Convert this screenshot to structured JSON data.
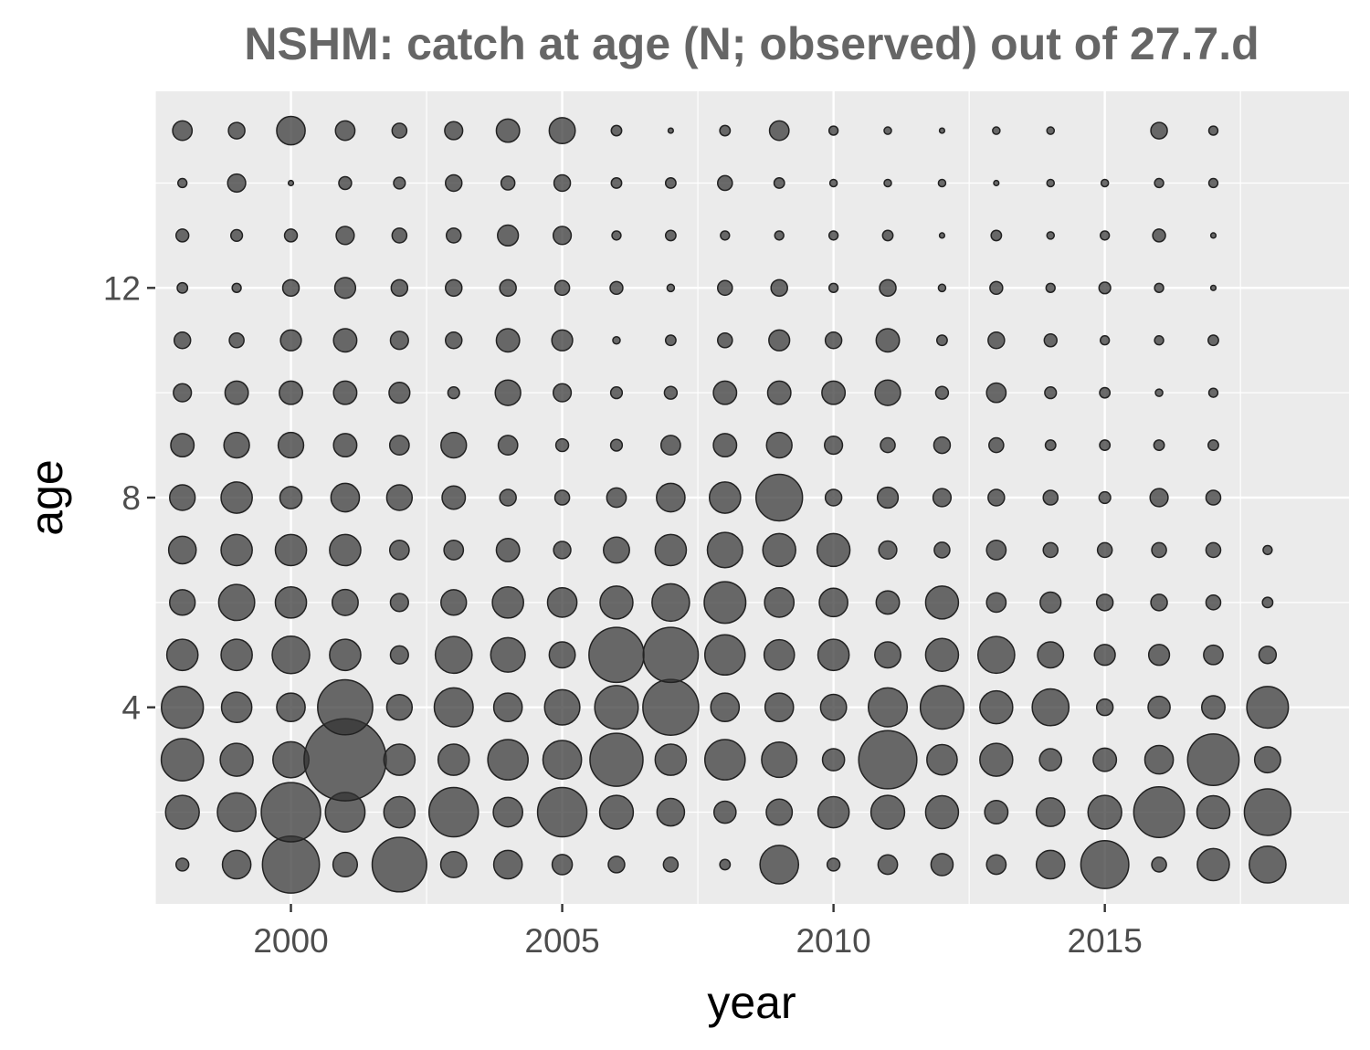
{
  "chart_data": {
    "type": "scatter",
    "title": "NSHM: catch at age (N; observed) out of 27.7.d",
    "xlabel": "year",
    "ylabel": "age",
    "xlim": [
      1997.5,
      2019.5
    ],
    "ylim": [
      0.25,
      15.75
    ],
    "x_ticks": [
      2000,
      2005,
      2010,
      2015
    ],
    "y_ticks": [
      4,
      8,
      12
    ],
    "grid": true,
    "legend": "none",
    "years": [
      1998,
      1999,
      2000,
      2001,
      2002,
      2003,
      2004,
      2005,
      2006,
      2007,
      2008,
      2009,
      2010,
      2011,
      2012,
      2013,
      2014,
      2015,
      2016,
      2017,
      2018
    ],
    "ages": [
      1,
      2,
      3,
      4,
      5,
      6,
      7,
      8,
      9,
      10,
      11,
      12,
      13,
      14,
      15
    ],
    "note": "values[a][y] = relative catch numbers (bubble area) for ages[a] and years[y]; 0 = no observation",
    "values": [
      [
        6,
        30,
        120,
        22,
        110,
        25,
        30,
        15,
        10,
        8,
        4,
        55,
        6,
        14,
        18,
        14,
        30,
        85,
        8,
        38,
        50
      ],
      [
        42,
        55,
        130,
        58,
        36,
        90,
        32,
        90,
        42,
        28,
        18,
        25,
        36,
        42,
        40,
        20,
        30,
        42,
        95,
        40,
        80
      ],
      [
        66,
        40,
        48,
        250,
        36,
        36,
        60,
        55,
        104,
        36,
        60,
        46,
        18,
        125,
        34,
        40,
        18,
        20,
        30,
        98,
        25
      ],
      [
        65,
        34,
        30,
        112,
        24,
        56,
        30,
        46,
        70,
        115,
        30,
        30,
        25,
        56,
        70,
        40,
        50,
        10,
        18,
        20,
        64
      ],
      [
        36,
        36,
        52,
        36,
        12,
        50,
        44,
        25,
        112,
        112,
        60,
        34,
        36,
        25,
        40,
        50,
        25,
        16,
        16,
        14,
        11
      ],
      [
        24,
        48,
        36,
        25,
        12,
        24,
        36,
        32,
        40,
        52,
        64,
        32,
        30,
        20,
        40,
        14,
        16,
        10,
        10,
        8,
        4
      ],
      [
        28,
        36,
        36,
        36,
        14,
        14,
        20,
        11,
        25,
        36,
        46,
        40,
        40,
        12,
        9,
        14,
        8,
        8,
        8,
        8,
        3
      ],
      [
        24,
        36,
        18,
        30,
        24,
        20,
        10,
        8,
        14,
        30,
        36,
        80,
        10,
        16,
        12,
        10,
        8,
        5,
        12,
        8,
        0
      ],
      [
        20,
        24,
        24,
        20,
        14,
        24,
        14,
        6,
        5,
        14,
        20,
        24,
        12,
        8,
        10,
        8,
        4,
        4,
        4,
        4,
        0
      ],
      [
        12,
        20,
        20,
        20,
        16,
        5,
        24,
        12,
        5,
        6,
        20,
        20,
        20,
        24,
        6,
        14,
        5,
        4,
        2,
        3,
        0
      ],
      [
        10,
        8,
        16,
        20,
        12,
        10,
        20,
        16,
        2,
        4,
        8,
        16,
        10,
        20,
        4,
        10,
        6,
        3,
        3,
        4,
        0
      ],
      [
        4,
        3,
        10,
        16,
        10,
        10,
        10,
        8,
        6,
        2,
        8,
        10,
        3,
        10,
        2,
        6,
        3,
        5,
        3,
        1,
        0
      ],
      [
        6,
        5,
        6,
        12,
        8,
        8,
        16,
        12,
        3,
        4,
        3,
        3,
        3,
        4,
        1,
        4,
        2,
        3,
        6,
        1,
        0
      ],
      [
        3,
        12,
        1,
        6,
        5,
        10,
        7,
        10,
        4,
        4,
        8,
        4,
        2,
        2,
        2,
        1,
        2,
        2,
        3,
        3,
        0
      ],
      [
        14,
        10,
        30,
        14,
        8,
        12,
        20,
        25,
        4,
        1,
        4,
        14,
        3,
        2,
        1,
        2,
        2,
        0,
        10,
        3,
        0
      ]
    ]
  }
}
